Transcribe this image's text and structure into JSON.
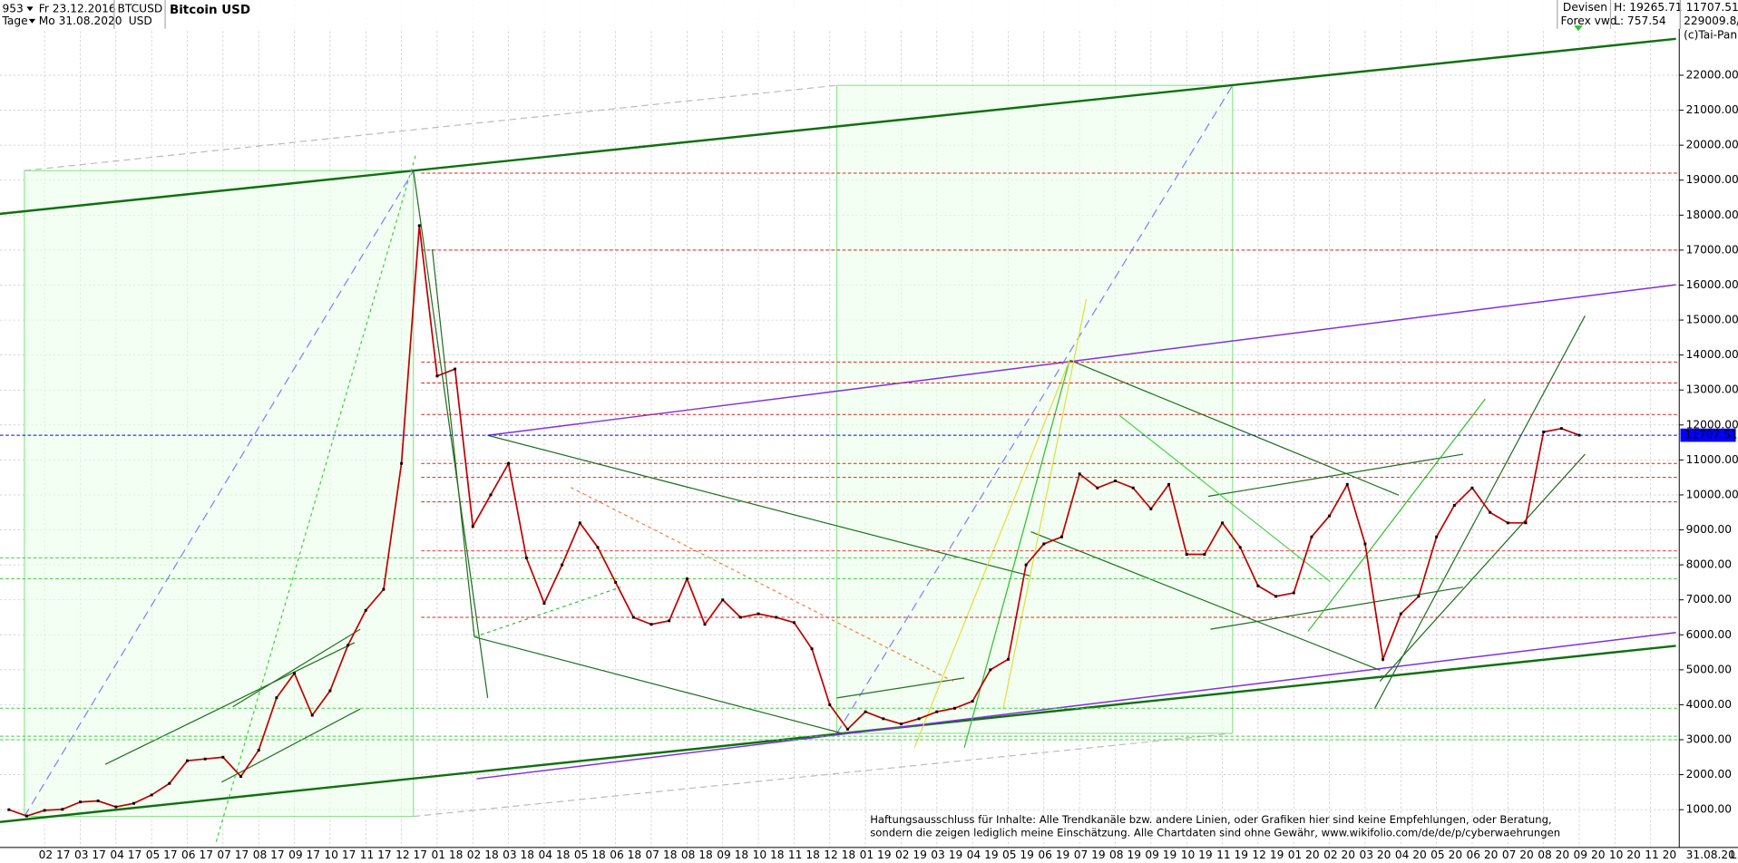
{
  "header": {
    "count": "953",
    "start": "Fr 23.12.2016",
    "period": "Tage",
    "end": "Mo 31.08.2020",
    "symbol": "BTCUSD",
    "currency": "USD",
    "name": "Bitcoin USD",
    "market": "Devisen",
    "source": "Forex vwd",
    "high": "H: 19265.71",
    "low": "L: 757.54",
    "volume": "229009.8/",
    "copyright": "(c)Tai-Pan",
    "date_end": "31.08.20",
    "scale_mode": "L"
  },
  "chart_data": {
    "type": "line",
    "title": "Bitcoin USD",
    "categories": [
      null,
      null,
      "02 17",
      null,
      "03 17",
      null,
      "04 17",
      null,
      "05 17",
      null,
      "06 17",
      null,
      "07 17",
      null,
      "08 17",
      null,
      "09 17",
      null,
      "10 17",
      null,
      "11 17",
      null,
      "12 17",
      null,
      "01 18",
      null,
      "02 18",
      null,
      "03 18",
      null,
      "04 18",
      null,
      "05 18",
      null,
      "06 18",
      null,
      "07 18",
      null,
      "08 18",
      null,
      "09 18",
      null,
      "10 18",
      null,
      "11 18",
      null,
      "12 18",
      null,
      "01 19",
      null,
      "02 19",
      null,
      "03 19",
      null,
      "04 19",
      null,
      "05 19",
      null,
      "06 19",
      null,
      "07 19",
      null,
      "08 19",
      null,
      "09 19",
      null,
      "10 19",
      null,
      "11 19",
      null,
      "12 19",
      null,
      "01 20",
      null,
      "02 20",
      null,
      "03 20",
      null,
      "04 20",
      null,
      "05 20",
      null,
      "06 20",
      null,
      "07 20",
      null,
      "08 20",
      null,
      "09 20",
      null,
      "10 20",
      null,
      "11 20",
      null
    ],
    "series": [
      {
        "name": "BTCUSD",
        "color": "#c00000",
        "values": [
          1000,
          820,
          980,
          1010,
          1220,
          1250,
          1080,
          1180,
          1420,
          1750,
          2400,
          2450,
          2500,
          1950,
          2700,
          4200,
          4900,
          3700,
          4400,
          5700,
          6700,
          7300,
          10900,
          17700,
          13400,
          13600,
          9100,
          10000,
          10900,
          8200,
          6900,
          8000,
          9200,
          8500,
          7500,
          6500,
          6300,
          6400,
          7600,
          6300,
          7000,
          6500,
          6600,
          6500,
          6350,
          5600,
          4000,
          3300,
          3800,
          3600,
          3450,
          3600,
          3800,
          3900,
          4100,
          5000,
          5300,
          8000,
          8600,
          8800,
          10600,
          10200,
          10400,
          10200,
          9600,
          10300,
          8300,
          8300,
          9200,
          8500,
          7400,
          7100,
          7200,
          8800,
          9400,
          10300,
          8600,
          5300,
          6600,
          7100,
          8800,
          9700,
          10200,
          9500,
          9200,
          9200,
          11800,
          11900,
          11707.51,
          null,
          null,
          null,
          null,
          null
        ]
      }
    ],
    "last": {
      "value": 11707.51,
      "label": "11707.51",
      "color": "#0000ff"
    },
    "levels": [
      19200,
      17000,
      13800,
      13200,
      12300,
      10900,
      10500,
      9800,
      8400,
      6500
    ],
    "levels_color": "#e02020",
    "support_levels": [
      8200,
      7600,
      3900,
      3100,
      3000
    ],
    "support_color": "#40d040",
    "ylim": [
      -80,
      24150
    ],
    "yticks": [
      {
        "value": 1000,
        "label": "1000.00"
      },
      {
        "value": 2000,
        "label": "2000.00"
      },
      {
        "value": 3000,
        "label": "3000.00"
      },
      {
        "value": 4000,
        "label": "4000.00"
      },
      {
        "value": 5000,
        "label": "5000.00"
      },
      {
        "value": 6000,
        "label": "6000.00"
      },
      {
        "value": 7000,
        "label": "7000.00"
      },
      {
        "value": 8000,
        "label": "8000.00"
      },
      {
        "value": 9000,
        "label": "9000.00"
      },
      {
        "value": 10000,
        "label": "10000.00"
      },
      {
        "value": 11000,
        "label": "11000.00"
      },
      {
        "value": 12000,
        "label": "12000.00"
      },
      {
        "value": 13000,
        "label": "13000.00"
      },
      {
        "value": 14000,
        "label": "14000.00"
      },
      {
        "value": 15000,
        "label": "15000.00"
      },
      {
        "value": 16000,
        "label": "16000.00"
      },
      {
        "value": 17000,
        "label": "17000.00"
      },
      {
        "value": 18000,
        "label": "18000.00"
      },
      {
        "value": 19000,
        "label": "19000.00"
      },
      {
        "value": 20000,
        "label": "20000.00"
      },
      {
        "value": 21000,
        "label": "21000.00"
      },
      {
        "value": 22000,
        "label": "22000.00"
      }
    ],
    "grid": true,
    "annotations": [
      "Haftungsausschluss für Inhalte: Alle Trendkanäle bzw. andere Linien, oder Grafiken hier sind keine Empfehlungen, oder Beratung,",
      "sondern die zeigen lediglich meine  Einschätzung. Alle Chartdaten sind ohne Gewähr,  www.wikifolio.com/de/de/p/cyberwaehrungen"
    ]
  }
}
